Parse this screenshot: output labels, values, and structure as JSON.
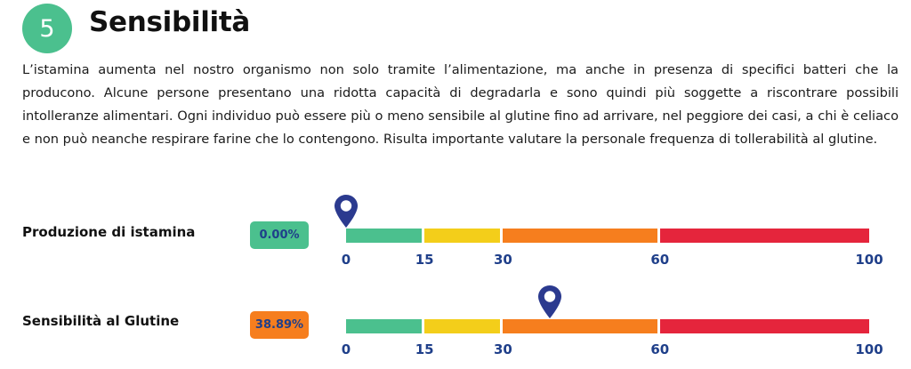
{
  "section": {
    "number": "5",
    "title": "Sensibilità"
  },
  "intro": "L’istamina aumenta nel nostro organismo non solo tramite l’alimentazione, ma anche in presenza di specifici batteri che la producono. Alcune persone presentano una ridotta capacità di degradarla e sono quindi più soggette a riscontrare possibili intolleranze alimentari. Ogni individuo può essere più o meno sensibile al glutine fino ad arrivare, nel peggiore dei casi, a chi è celiaco e non può neanche respirare farine che lo contengono. Risulta importante valutare la personale frequenza di tollerabilità al glutine.",
  "scale": {
    "ticks": [
      "0",
      "15",
      "30",
      "60",
      "100"
    ],
    "tick_values": [
      0,
      15,
      30,
      60,
      100
    ],
    "segments": [
      {
        "from": 0,
        "to": 15,
        "color": "#4bc08e"
      },
      {
        "from": 15,
        "to": 30,
        "color": "#f3ce1a"
      },
      {
        "from": 30,
        "to": 60,
        "color": "#f67e1e"
      },
      {
        "from": 60,
        "to": 100,
        "color": "#e5253c"
      }
    ],
    "marker_color": "#2b3a8f"
  },
  "rows": [
    {
      "label": "Produzione di istamina",
      "percent_text": "0.00%",
      "value": 0,
      "badge_color": "#4bc08e"
    },
    {
      "label": "Sensibilità al Glutine",
      "percent_text": "38.89%",
      "value": 38.89,
      "badge_color": "#f67e1e"
    }
  ]
}
